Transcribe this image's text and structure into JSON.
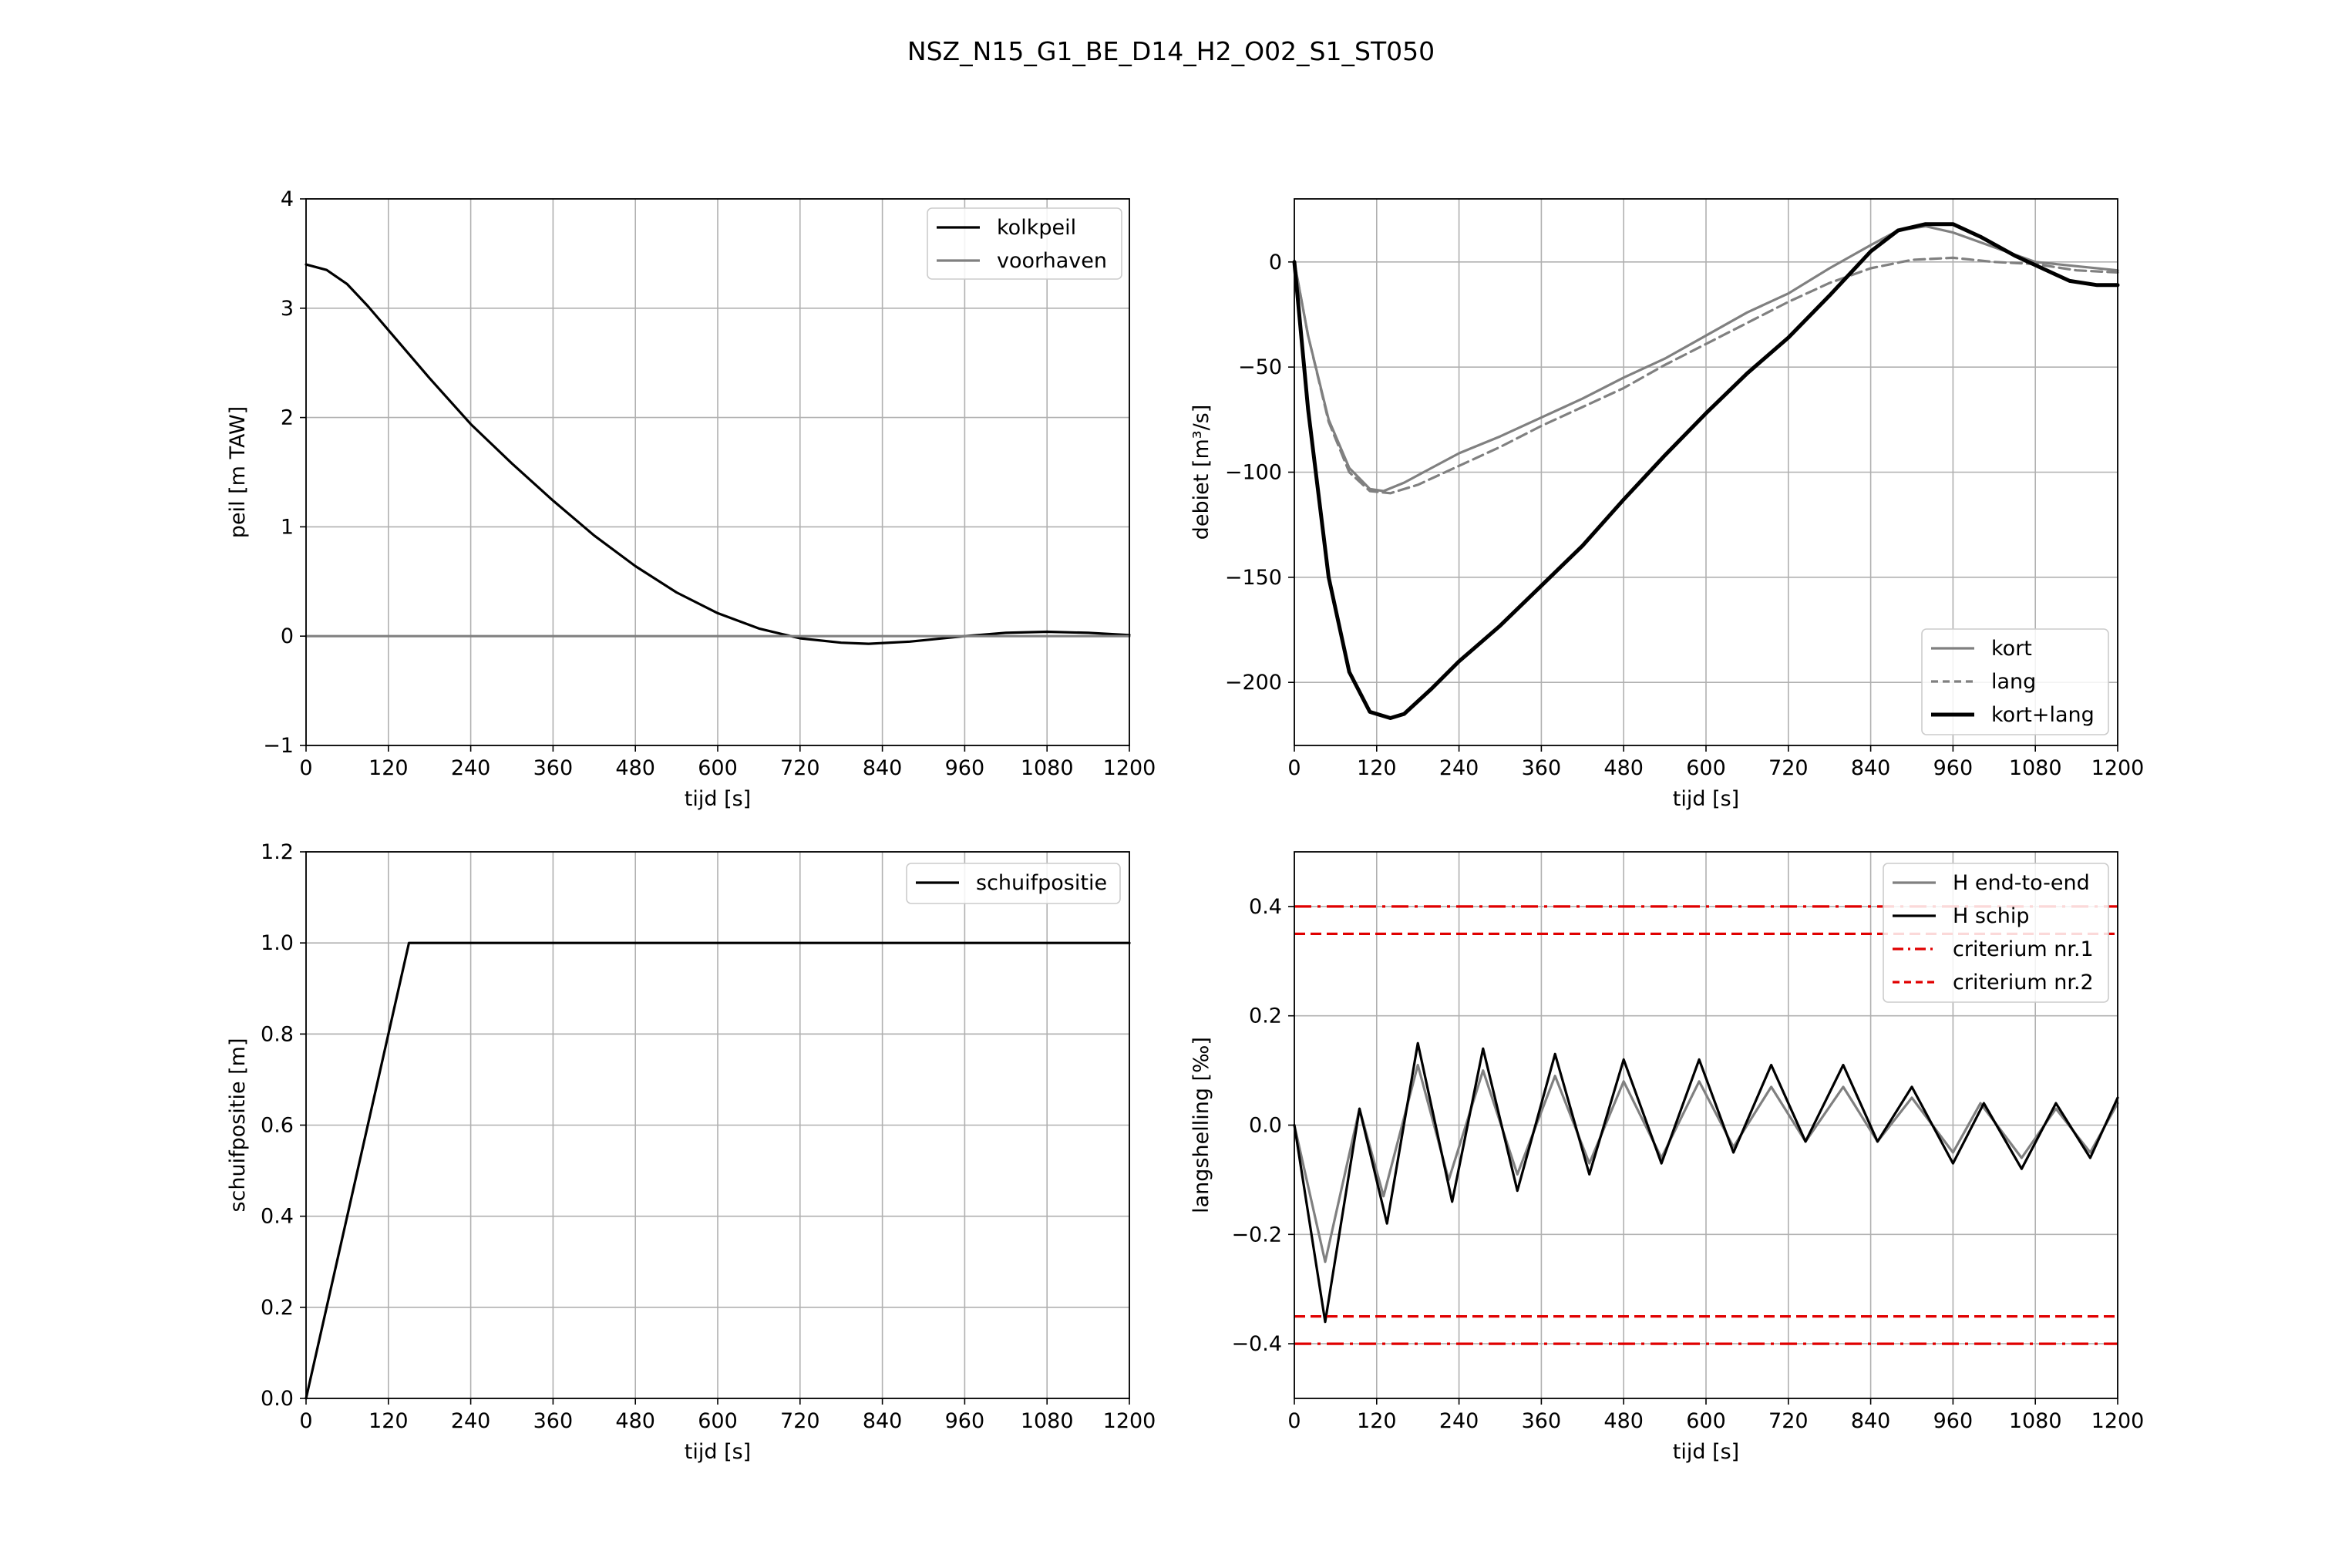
{
  "title": "NSZ_N15_G1_BE_D14_H2_O02_S1_ST050",
  "colors": {
    "black": "#000000",
    "gray": "#808080",
    "red": "#e00000",
    "grid": "#b0b0b0"
  },
  "chart_data": [
    {
      "type": "line",
      "xlabel": "tijd [s]",
      "ylabel": "peil [m TAW]",
      "xlim": [
        0,
        1200
      ],
      "ylim": [
        -1,
        4
      ],
      "xticks": [
        0,
        120,
        240,
        360,
        480,
        600,
        720,
        840,
        960,
        1080,
        1200
      ],
      "yticks": [
        -1,
        0,
        1,
        2,
        3,
        4
      ],
      "yticklabels": [
        "−1",
        "0",
        "1",
        "2",
        "3",
        "4"
      ],
      "grid": true,
      "legend_position": "top-right",
      "series": [
        {
          "name": "kolkpeil",
          "color": "#000000",
          "style": "solid",
          "width": 3.2,
          "x": [
            0,
            30,
            60,
            90,
            120,
            180,
            240,
            300,
            360,
            420,
            480,
            540,
            600,
            660,
            700,
            720,
            780,
            820,
            880,
            960,
            1020,
            1080,
            1140,
            1200
          ],
          "y": [
            3.4,
            3.35,
            3.22,
            3.02,
            2.8,
            2.36,
            1.94,
            1.58,
            1.24,
            0.92,
            0.64,
            0.4,
            0.21,
            0.07,
            0.01,
            -0.02,
            -0.06,
            -0.07,
            -0.05,
            0.0,
            0.03,
            0.04,
            0.03,
            0.01
          ]
        },
        {
          "name": "voorhaven",
          "color": "#808080",
          "style": "solid",
          "width": 3.2,
          "x": [
            0,
            1200
          ],
          "y": [
            0,
            0
          ]
        }
      ]
    },
    {
      "type": "line",
      "xlabel": "tijd [s]",
      "ylabel": "debiet [m³/s]",
      "xlim": [
        0,
        1200
      ],
      "ylim": [
        -230,
        30
      ],
      "xticks": [
        0,
        120,
        240,
        360,
        480,
        600,
        720,
        840,
        960,
        1080,
        1200
      ],
      "yticks": [
        -200,
        -150,
        -100,
        -50,
        0
      ],
      "yticklabels": [
        "−200",
        "−150",
        "−100",
        "−50",
        "0"
      ],
      "grid": true,
      "legend_position": "bottom-right",
      "series": [
        {
          "name": "kort",
          "color": "#808080",
          "style": "solid",
          "width": 3.2,
          "x": [
            0,
            20,
            50,
            80,
            110,
            130,
            160,
            200,
            240,
            300,
            360,
            420,
            480,
            540,
            600,
            660,
            720,
            780,
            840,
            880,
            920,
            960,
            1020,
            1080,
            1140,
            1200
          ],
          "y": [
            0,
            -35,
            -75,
            -98,
            -108,
            -109,
            -105,
            -98,
            -91,
            -83,
            -74,
            -65,
            -55,
            -46,
            -35,
            -24,
            -15,
            -3,
            8,
            15,
            17,
            14,
            7,
            0,
            -2,
            -4
          ]
        },
        {
          "name": "lang",
          "color": "#808080",
          "style": "dashed",
          "width": 3.2,
          "x": [
            0,
            20,
            50,
            80,
            110,
            140,
            180,
            240,
            300,
            360,
            420,
            480,
            540,
            600,
            660,
            720,
            780,
            840,
            900,
            960,
            1020,
            1080,
            1140,
            1200
          ],
          "y": [
            0,
            -35,
            -76,
            -100,
            -109,
            -110,
            -106,
            -97,
            -88,
            -78,
            -69,
            -60,
            -49,
            -39,
            -29,
            -19,
            -10,
            -3,
            1,
            2,
            0,
            -1,
            -4,
            -5
          ]
        },
        {
          "name": "kort+lang",
          "color": "#000000",
          "style": "solid",
          "width": 5,
          "x": [
            0,
            20,
            50,
            80,
            110,
            140,
            160,
            200,
            240,
            300,
            360,
            420,
            480,
            540,
            600,
            660,
            720,
            780,
            840,
            880,
            920,
            960,
            1000,
            1050,
            1090,
            1130,
            1170,
            1200
          ],
          "y": [
            0,
            -70,
            -150,
            -195,
            -214,
            -217,
            -215,
            -203,
            -190,
            -173,
            -154,
            -135,
            -113,
            -92,
            -72,
            -53,
            -36,
            -16,
            5,
            15,
            18,
            18,
            12,
            3,
            -3,
            -9,
            -11,
            -11
          ]
        }
      ]
    },
    {
      "type": "line",
      "xlabel": "tijd [s]",
      "ylabel": "schuifpositie [m]",
      "xlim": [
        0,
        1200
      ],
      "ylim": [
        0,
        1.2
      ],
      "xticks": [
        0,
        120,
        240,
        360,
        480,
        600,
        720,
        840,
        960,
        1080,
        1200
      ],
      "yticks": [
        0,
        0.2,
        0.4,
        0.6,
        0.8,
        1.0,
        1.2
      ],
      "yticklabels": [
        "0.0",
        "0.2",
        "0.4",
        "0.6",
        "0.8",
        "1.0",
        "1.2"
      ],
      "grid": true,
      "legend_position": "top-right",
      "series": [
        {
          "name": "schuifpositie",
          "color": "#000000",
          "style": "solid",
          "width": 3.2,
          "x": [
            0,
            150,
            1200
          ],
          "y": [
            0.0,
            1.0,
            1.0
          ]
        }
      ]
    },
    {
      "type": "line",
      "xlabel": "tijd [s]",
      "ylabel": "langshelling [‰]",
      "xlim": [
        0,
        1200
      ],
      "ylim": [
        -0.5,
        0.5
      ],
      "xticks": [
        0,
        120,
        240,
        360,
        480,
        600,
        720,
        840,
        960,
        1080,
        1200
      ],
      "yticks": [
        -0.4,
        -0.2,
        0.0,
        0.2,
        0.4
      ],
      "yticklabels": [
        "−0.4",
        "−0.2",
        "0.0",
        "0.2",
        "0.4"
      ],
      "grid": true,
      "legend_position": "top-right",
      "series": [
        {
          "name": "H end-to-end",
          "color": "#808080",
          "style": "solid",
          "width": 3.2,
          "x": [
            0,
            45,
            95,
            130,
            180,
            225,
            275,
            325,
            380,
            430,
            480,
            535,
            590,
            640,
            695,
            745,
            800,
            850,
            900,
            960,
            1000,
            1060,
            1110,
            1160,
            1200
          ],
          "y": [
            0,
            -0.25,
            0.03,
            -0.13,
            0.11,
            -0.1,
            0.1,
            -0.09,
            0.09,
            -0.07,
            0.08,
            -0.06,
            0.08,
            -0.04,
            0.07,
            -0.03,
            0.07,
            -0.03,
            0.05,
            -0.05,
            0.04,
            -0.06,
            0.03,
            -0.05,
            0.04
          ]
        },
        {
          "name": "H schip",
          "color": "#000000",
          "style": "solid",
          "width": 3.2,
          "x": [
            0,
            45,
            95,
            135,
            180,
            230,
            275,
            325,
            380,
            430,
            480,
            535,
            590,
            640,
            695,
            745,
            800,
            850,
            900,
            960,
            1005,
            1060,
            1110,
            1160,
            1200
          ],
          "y": [
            0,
            -0.36,
            0.03,
            -0.18,
            0.15,
            -0.14,
            0.14,
            -0.12,
            0.13,
            -0.09,
            0.12,
            -0.07,
            0.12,
            -0.05,
            0.11,
            -0.03,
            0.11,
            -0.03,
            0.07,
            -0.07,
            0.04,
            -0.08,
            0.04,
            -0.06,
            0.05
          ]
        },
        {
          "name": "criterium nr.1",
          "color": "#e00000",
          "style": "dashdot",
          "width": 3.2,
          "hlines": [
            0.4,
            -0.4
          ]
        },
        {
          "name": "criterium nr.2",
          "color": "#e00000",
          "style": "dashed",
          "width": 3.2,
          "hlines": [
            0.35,
            -0.35
          ]
        }
      ]
    }
  ]
}
